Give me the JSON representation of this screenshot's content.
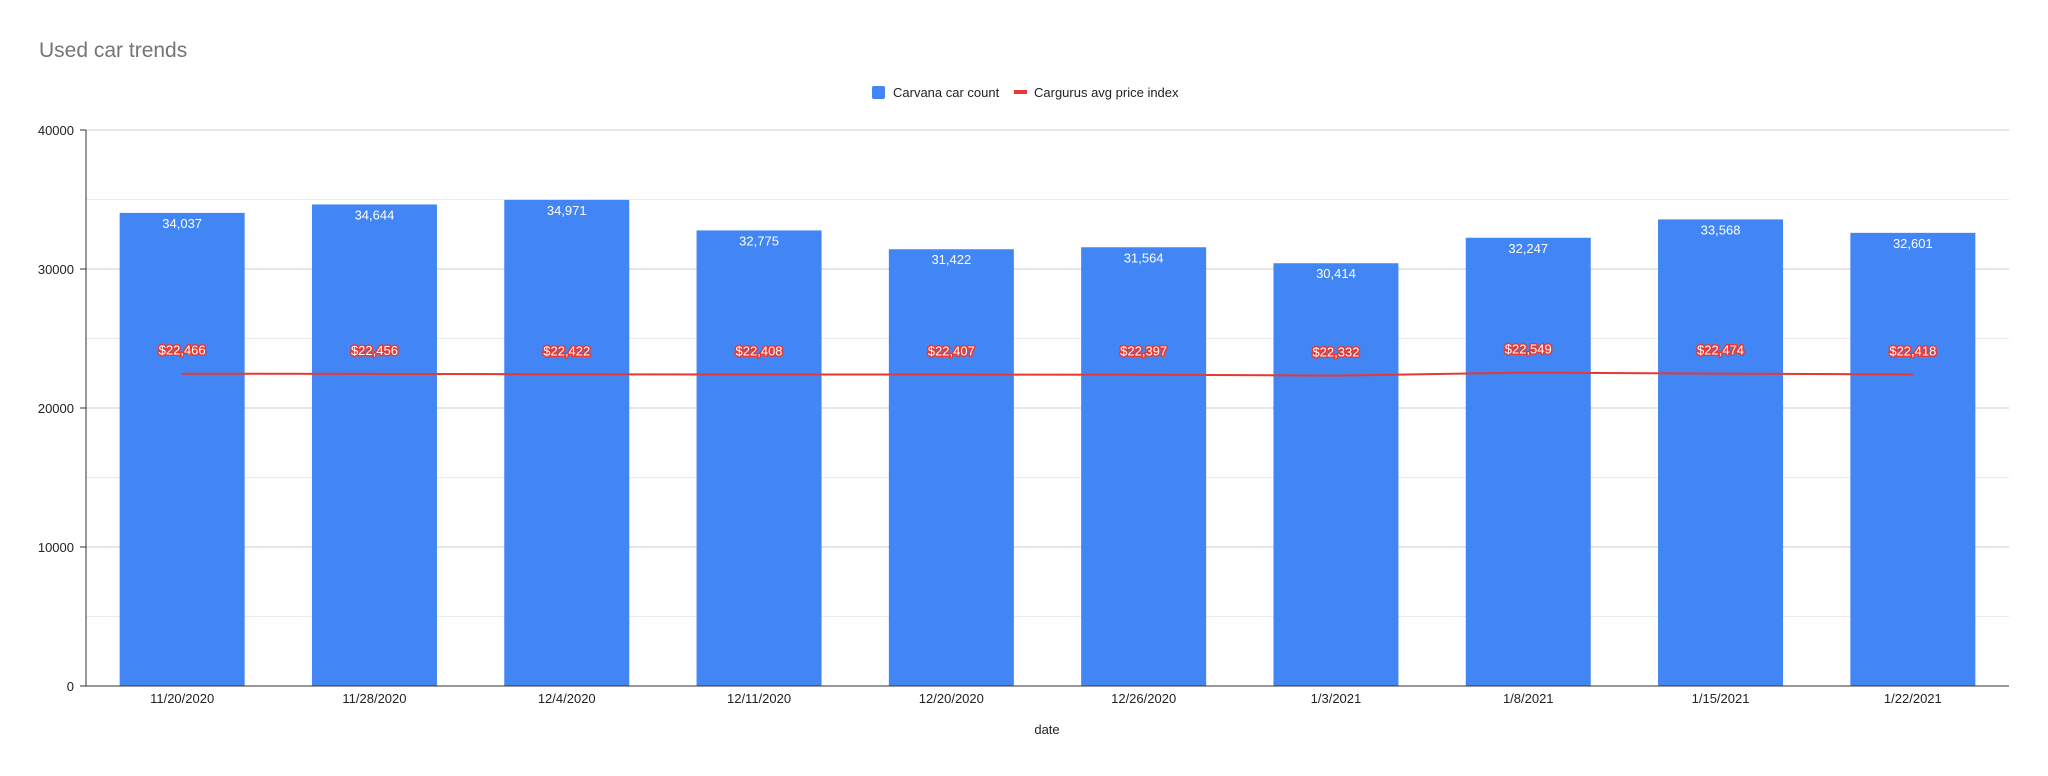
{
  "chart_data": {
    "type": "bar",
    "title": "Used car trends",
    "xlabel": "date",
    "ylabel": "",
    "ylim": [
      0,
      40000
    ],
    "yticks": [
      0,
      10000,
      20000,
      30000,
      40000
    ],
    "grid": true,
    "legend_position": "top",
    "categories": [
      "11/20/2020",
      "11/28/2020",
      "12/4/2020",
      "12/11/2020",
      "12/20/2020",
      "12/26/2020",
      "1/3/2021",
      "1/8/2021",
      "1/15/2021",
      "1/22/2021"
    ],
    "series": [
      {
        "name": "Carvana car count",
        "type": "bar",
        "color": "#4285f4",
        "values": [
          34037,
          34644,
          34971,
          32775,
          31422,
          31564,
          30414,
          32247,
          33568,
          32601
        ],
        "labels": [
          "34,037",
          "34,644",
          "34,971",
          "32,775",
          "31,422",
          "31,564",
          "30,414",
          "32,247",
          "33,568",
          "32,601"
        ]
      },
      {
        "name": "Cargurus avg price index",
        "type": "line",
        "color": "#e53935",
        "values": [
          22466,
          22456,
          22422,
          22408,
          22407,
          22397,
          22332,
          22549,
          22474,
          22418
        ],
        "labels": [
          "$22,466",
          "$22,456",
          "$22,422",
          "$22,408",
          "$22,407",
          "$22,397",
          "$22,332",
          "$22,549",
          "$22,474",
          "$22,418"
        ]
      }
    ]
  }
}
